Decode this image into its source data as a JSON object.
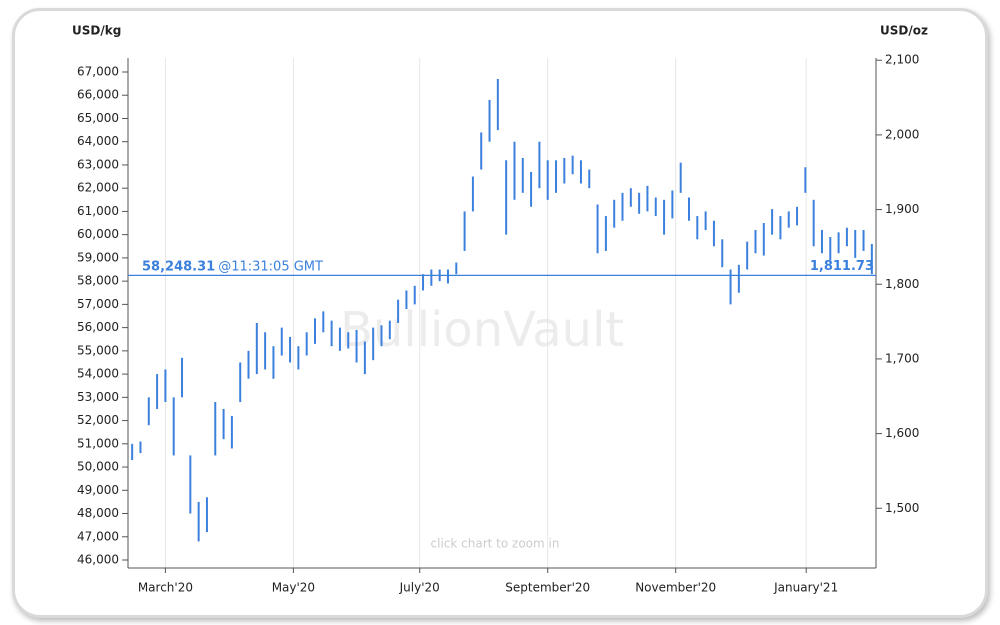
{
  "chart_data": {
    "type": "range-bar",
    "y_label": "USD/kg",
    "y2_label": "USD/oz",
    "color": "#3b80dd",
    "watermark": "BullionVault",
    "hint": "click chart to zoom in",
    "grid": "x",
    "categories": [
      null,
      null,
      null,
      null,
      null,
      null,
      null,
      null,
      null,
      null,
      null,
      null,
      null,
      null,
      null,
      null,
      null,
      null,
      null,
      null,
      null,
      null,
      null,
      null,
      null,
      null,
      null,
      null,
      null,
      null,
      null,
      null,
      null,
      null,
      null,
      null,
      null,
      null,
      null,
      null,
      null,
      null,
      null,
      null,
      null,
      null,
      null,
      null,
      null,
      null,
      null,
      null,
      null,
      null,
      null,
      null,
      null,
      null,
      null,
      null,
      null,
      null,
      null,
      null,
      null,
      null,
      null,
      null,
      null,
      null,
      null,
      null,
      null,
      null,
      null,
      null,
      null,
      null,
      null,
      null,
      null,
      null,
      null,
      null,
      null,
      null,
      null,
      null,
      null,
      null
    ],
    "low": [
      50300,
      50600,
      51800,
      52500,
      52800,
      50500,
      53000,
      48000,
      46800,
      47200,
      50500,
      51200,
      50800,
      52800,
      53800,
      54000,
      54200,
      53800,
      54800,
      54500,
      54200,
      54800,
      55300,
      55800,
      55200,
      55000,
      55100,
      54500,
      54000,
      54600,
      55200,
      55500,
      56200,
      56800,
      57000,
      57600,
      57800,
      58000,
      57900,
      58300,
      59300,
      61000,
      62800,
      64000,
      64500,
      60000,
      61500,
      61800,
      61200,
      62000,
      61500,
      61800,
      62200,
      62600,
      62200,
      62000,
      59200,
      59300,
      60300,
      60600,
      61200,
      60900,
      61000,
      60800,
      60000,
      60700,
      61800,
      60600,
      59800,
      60200,
      59500,
      58600,
      57000,
      57500,
      58500,
      59200,
      59100,
      60000,
      59800,
      60300,
      60400,
      61800,
      59500,
      59200,
      58900,
      59200,
      59500,
      59000,
      59300,
      58300
    ],
    "high": [
      51000,
      51100,
      53000,
      54000,
      54200,
      53000,
      54700,
      50500,
      48500,
      48700,
      52800,
      52500,
      52200,
      54500,
      55000,
      56200,
      55800,
      55200,
      56000,
      55600,
      55200,
      55800,
      56400,
      56700,
      56300,
      56000,
      55800,
      55900,
      55400,
      56000,
      56100,
      56300,
      57200,
      57600,
      57800,
      58300,
      58500,
      58500,
      58500,
      58800,
      61000,
      62500,
      64400,
      65800,
      66700,
      63200,
      64000,
      63300,
      62700,
      64000,
      63200,
      63200,
      63300,
      63400,
      63200,
      62800,
      61300,
      60800,
      61500,
      61800,
      62000,
      61800,
      62100,
      61600,
      61500,
      61900,
      63100,
      61600,
      60800,
      61000,
      60600,
      59800,
      58500,
      58700,
      59700,
      60200,
      60500,
      61100,
      60800,
      61000,
      61200,
      62900,
      61500,
      60200,
      59900,
      60100,
      60300,
      60200,
      60200,
      59600
    ],
    "xticks": [
      {
        "value": 4,
        "label": "March'20"
      },
      {
        "value": 19.4,
        "label": "May'20"
      },
      {
        "value": 34.6,
        "label": "July'20"
      },
      {
        "value": 50.0,
        "label": "September'20"
      },
      {
        "value": 65.4,
        "label": "November'20"
      },
      {
        "value": 81.1,
        "label": "January'21"
      }
    ],
    "ylim": [
      45656,
      67602
    ],
    "yticks": [
      {
        "value": 46000,
        "label": "46,000"
      },
      {
        "value": 47000,
        "label": "47,000"
      },
      {
        "value": 48000,
        "label": "48,000"
      },
      {
        "value": 49000,
        "label": "49,000"
      },
      {
        "value": 50000,
        "label": "50,000"
      },
      {
        "value": 51000,
        "label": "51,000"
      },
      {
        "value": 52000,
        "label": "52,000"
      },
      {
        "value": 53000,
        "label": "53,000"
      },
      {
        "value": 54000,
        "label": "54,000"
      },
      {
        "value": 55000,
        "label": "55,000"
      },
      {
        "value": 56000,
        "label": "56,000"
      },
      {
        "value": 57000,
        "label": "57,000"
      },
      {
        "value": 58000,
        "label": "58,000"
      },
      {
        "value": 59000,
        "label": "59,000"
      },
      {
        "value": 60000,
        "label": "60,000"
      },
      {
        "value": 61000,
        "label": "61,000"
      },
      {
        "value": 62000,
        "label": "62,000"
      },
      {
        "value": 63000,
        "label": "63,000"
      },
      {
        "value": 64000,
        "label": "64,000"
      },
      {
        "value": 65000,
        "label": "65,000"
      },
      {
        "value": 66000,
        "label": "66,000"
      },
      {
        "value": 67000,
        "label": "67,000"
      }
    ],
    "y2lim": [
      1420,
      2103
    ],
    "y2ticks": [
      {
        "value": 1500,
        "label": "1,500"
      },
      {
        "value": 1600,
        "label": "1,600"
      },
      {
        "value": 1700,
        "label": "1,700"
      },
      {
        "value": 1800,
        "label": "1,800"
      },
      {
        "value": 1900,
        "label": "1,900"
      },
      {
        "value": 2000,
        "label": "2,000"
      },
      {
        "value": 2100,
        "label": "2,100"
      }
    ],
    "reference": {
      "value": 58248.31,
      "label": "58,248.31",
      "time": "@11:31:05 GMT",
      "value_oz": 1811.73,
      "value_oz_label": "1,811.73"
    }
  }
}
